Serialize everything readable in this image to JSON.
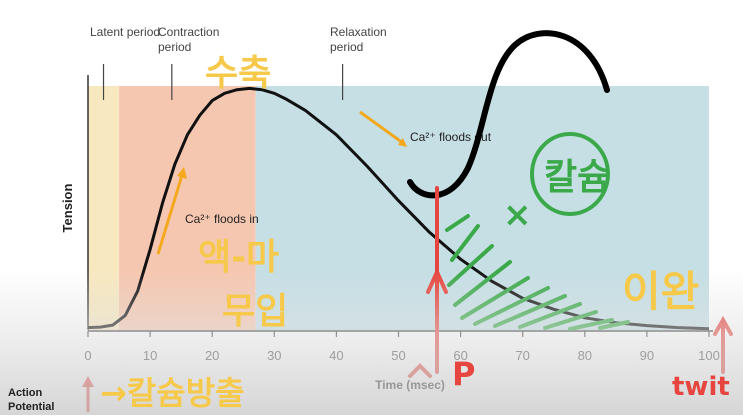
{
  "chart_data": {
    "type": "line",
    "title": "",
    "xlabel": "Time (msec)",
    "ylabel": "Tension",
    "xlim": [
      0,
      100
    ],
    "ylim": [
      0,
      1
    ],
    "xticks": [
      0,
      10,
      20,
      30,
      40,
      50,
      60,
      70,
      80,
      90,
      100
    ],
    "phases": [
      {
        "label": "Latent period",
        "start": 0,
        "end": 5,
        "color": "#f8e8c0"
      },
      {
        "label": "Contraction period",
        "start": 5,
        "end": 27,
        "color": "#f6c7b0"
      },
      {
        "label": "Relaxation period",
        "start": 27,
        "end": 100,
        "color": "#c5dfe5"
      }
    ],
    "series": [
      {
        "values": [
          [
            0,
            0.01
          ],
          [
            2,
            0.012
          ],
          [
            4,
            0.02
          ],
          [
            6,
            0.06
          ],
          [
            8,
            0.16
          ],
          [
            10,
            0.33
          ],
          [
            12,
            0.52
          ],
          [
            14,
            0.68
          ],
          [
            16,
            0.8
          ],
          [
            18,
            0.88
          ],
          [
            20,
            0.94
          ],
          [
            22,
            0.97
          ],
          [
            24,
            0.985
          ],
          [
            26,
            0.99
          ],
          [
            28,
            0.985
          ],
          [
            30,
            0.97
          ],
          [
            32,
            0.945
          ],
          [
            35,
            0.9
          ],
          [
            40,
            0.8
          ],
          [
            45,
            0.67
          ],
          [
            50,
            0.53
          ],
          [
            55,
            0.4
          ],
          [
            60,
            0.29
          ],
          [
            65,
            0.2
          ],
          [
            70,
            0.13
          ],
          [
            75,
            0.085
          ],
          [
            80,
            0.05
          ],
          [
            85,
            0.03
          ],
          [
            90,
            0.018
          ],
          [
            95,
            0.01
          ],
          [
            100,
            0.005
          ]
        ],
        "color": "#111111"
      }
    ],
    "annotations": [
      {
        "text": "Ca²⁺ floods in",
        "x": 15,
        "y": 0.42
      },
      {
        "text": "Ca²⁺ floods out",
        "x": 62,
        "y": 0.74
      }
    ]
  },
  "bottom_label": "Action Potential",
  "handwriting": {
    "contraction": "수축",
    "myosin_label_1": "액-마",
    "myosin_label_2": "무입",
    "calcium_release": "→칼슘방출",
    "calcium_circle": "칼슘",
    "x_mark": "×",
    "after_label": "이완",
    "p_label": "P",
    "twit_label": "twit"
  },
  "colors": {
    "curve": "#111111",
    "yellow": "#f6c94a",
    "green": "#3ba94a",
    "red": "#e6463f",
    "arrow_orange": "#f4a81e"
  }
}
